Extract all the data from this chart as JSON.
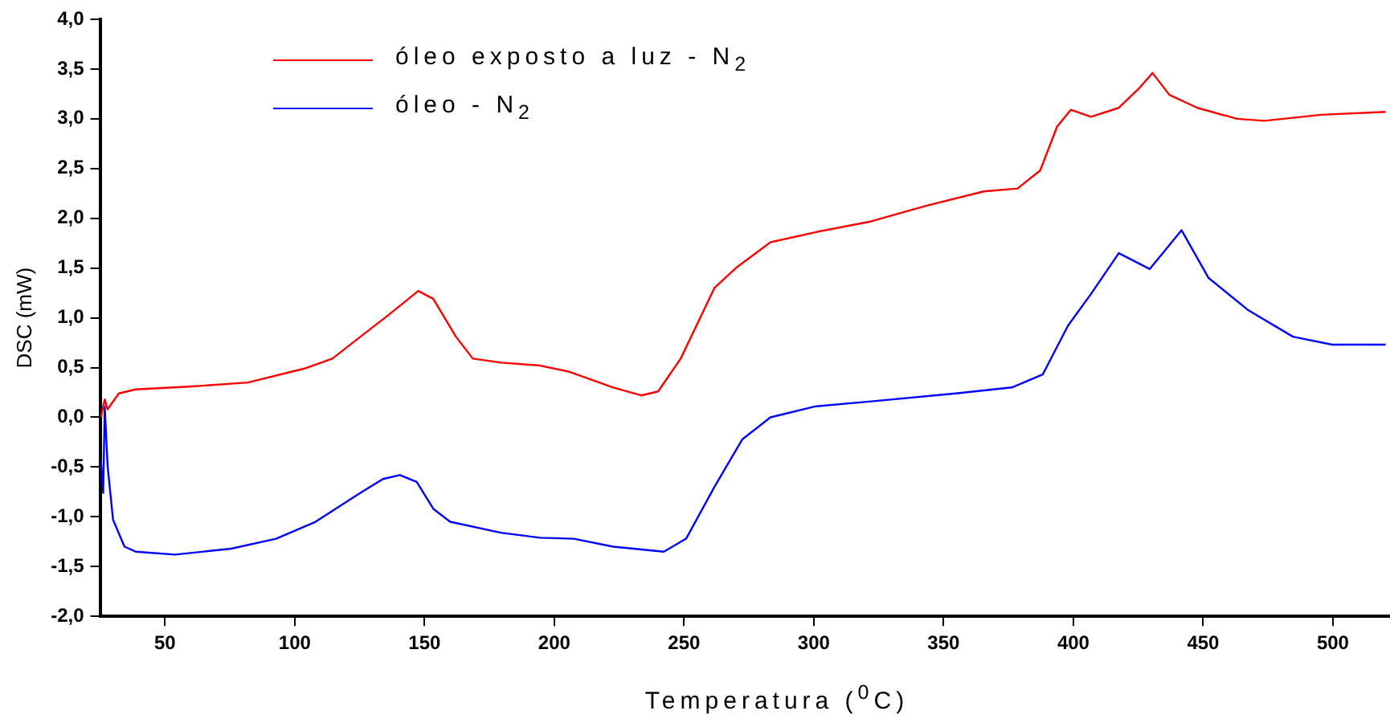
{
  "chart_data": {
    "type": "line",
    "xlabel": "Temperatura ($^{0}$C)",
    "ylabel": "DSC (mW)",
    "xlim": [
      25,
      522
    ],
    "ylim": [
      -2,
      4
    ],
    "xticks": [
      50,
      100,
      150,
      200,
      250,
      300,
      350,
      400,
      450,
      500
    ],
    "yticks": [
      {
        "value": -2,
        "label": "-2,0"
      },
      {
        "value": -1.5,
        "label": "-1,5"
      },
      {
        "value": -1,
        "label": "-1,0"
      },
      {
        "value": -0.5,
        "label": "-0,5"
      },
      {
        "value": 0,
        "label": "0,0"
      },
      {
        "value": 0.5,
        "label": "0,5"
      },
      {
        "value": 1,
        "label": "1,0"
      },
      {
        "value": 1.5,
        "label": "1,5"
      },
      {
        "value": 2,
        "label": "2,0"
      },
      {
        "value": 2.5,
        "label": "2,5"
      },
      {
        "value": 3,
        "label": "3,0"
      },
      {
        "value": 3.5,
        "label": "3,5"
      },
      {
        "value": 4,
        "label": "4,0"
      }
    ],
    "grid": false,
    "legend": "top left",
    "marker": "none",
    "line_style": "solid",
    "series": [
      {
        "name": "óleo exposto a luz - N$_{2}$",
        "color": "#ff0000",
        "x": [
          25.3,
          26.8,
          27.9,
          32.2,
          38.7,
          60.4,
          82,
          103.7,
          114.5,
          125.3,
          136.2,
          147.6,
          153.4,
          162.1,
          168.6,
          179.4,
          194.5,
          205.4,
          222.7,
          233.5,
          240,
          248.7,
          261.7,
          270.4,
          283.3,
          300.6,
          322.2,
          343.9,
          365.5,
          378.5,
          387.2,
          393.7,
          399,
          406.8,
          417.5,
          425.1,
          430.5,
          437,
          447.8,
          463,
          473.6,
          495.5,
          520.3
        ],
        "values": [
          0.0,
          0.18,
          0.08,
          0.24,
          0.28,
          0.31,
          0.35,
          0.49,
          0.59,
          0.81,
          1.03,
          1.27,
          1.19,
          0.81,
          0.59,
          0.55,
          0.52,
          0.46,
          0.3,
          0.22,
          0.26,
          0.59,
          1.3,
          1.51,
          1.76,
          1.86,
          1.97,
          2.13,
          2.27,
          2.3,
          2.48,
          2.92,
          3.09,
          3.02,
          3.11,
          3.3,
          3.46,
          3.24,
          3.11,
          3.0,
          2.98,
          3.04,
          3.07
        ]
      },
      {
        "name": "óleo - N$_{2}$",
        "color": "#0000ff",
        "x": [
          25.3,
          26.2,
          26.8,
          27.9,
          30,
          34.4,
          38.7,
          53.9,
          75.5,
          92.8,
          108,
          125.3,
          134,
          140.5,
          147,
          153.4,
          159.9,
          179.4,
          194.5,
          207.5,
          222.7,
          242.2,
          250.8,
          261.7,
          272.5,
          283.3,
          300.6,
          322.2,
          354.7,
          376.3,
          388.2,
          397.9,
          406.8,
          417.5,
          429.4,
          441.7,
          452.1,
          467.2,
          484.6,
          499.7,
          520.3
        ],
        "values": [
          -0.43,
          -0.76,
          0.11,
          -0.49,
          -1.03,
          -1.3,
          -1.35,
          -1.38,
          -1.32,
          -1.22,
          -1.05,
          -0.76,
          -0.62,
          -0.58,
          -0.65,
          -0.92,
          -1.05,
          -1.16,
          -1.21,
          -1.22,
          -1.3,
          -1.35,
          -1.22,
          -0.7,
          -0.22,
          0.0,
          0.11,
          0.16,
          0.24,
          0.3,
          0.43,
          0.92,
          1.24,
          1.65,
          1.49,
          1.88,
          1.4,
          1.08,
          0.81,
          0.73,
          0.73
        ]
      }
    ]
  }
}
